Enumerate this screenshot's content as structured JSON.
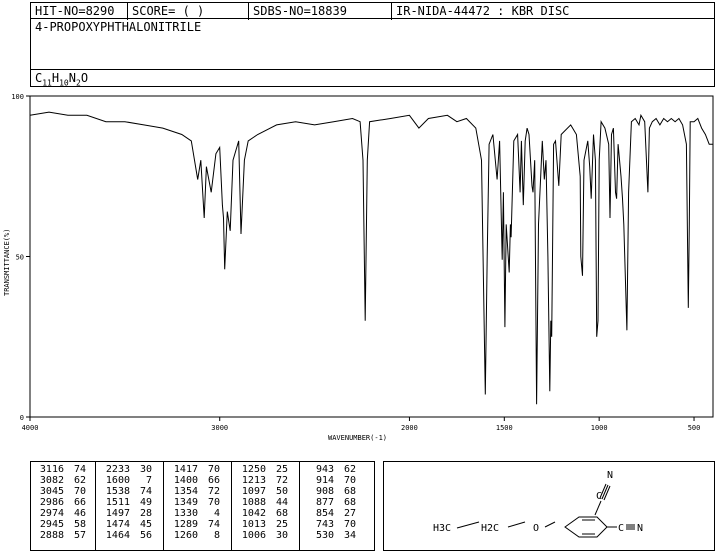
{
  "header": {
    "hit_no": "HIT-NO=8290",
    "score": "SCORE=  (    )",
    "sdbs_no": "SDBS-NO=18839",
    "ir_nida": "IR-NIDA-44472 : KBR DISC"
  },
  "compound": {
    "name": "4-PROPOXYPHTHALONITRILE",
    "formula": "C11H10N2O"
  },
  "chart_data": {
    "type": "line",
    "xlabel": "WAVENUMBER(-1)",
    "ylabel": "TRANSMITTANCE(%)",
    "xlim": [
      4000,
      400
    ],
    "ylim": [
      0,
      100
    ],
    "x_ticks": [
      4000,
      3000,
      2000,
      1500,
      1000,
      500
    ],
    "y_ticks": [
      0,
      50,
      100
    ],
    "series": [
      {
        "points": [
          [
            4000,
            94
          ],
          [
            3900,
            95
          ],
          [
            3800,
            94
          ],
          [
            3700,
            94
          ],
          [
            3600,
            92
          ],
          [
            3500,
            92
          ],
          [
            3400,
            91
          ],
          [
            3300,
            90
          ],
          [
            3200,
            88
          ],
          [
            3150,
            86
          ],
          [
            3116,
            74
          ],
          [
            3100,
            80
          ],
          [
            3082,
            62
          ],
          [
            3070,
            78
          ],
          [
            3045,
            70
          ],
          [
            3020,
            82
          ],
          [
            3000,
            84
          ],
          [
            2986,
            66
          ],
          [
            2980,
            62
          ],
          [
            2974,
            46
          ],
          [
            2960,
            64
          ],
          [
            2945,
            58
          ],
          [
            2930,
            80
          ],
          [
            2900,
            86
          ],
          [
            2888,
            57
          ],
          [
            2870,
            80
          ],
          [
            2850,
            86
          ],
          [
            2800,
            88
          ],
          [
            2700,
            91
          ],
          [
            2600,
            92
          ],
          [
            2500,
            91
          ],
          [
            2400,
            92
          ],
          [
            2300,
            93
          ],
          [
            2260,
            92
          ],
          [
            2245,
            80
          ],
          [
            2233,
            30
          ],
          [
            2222,
            80
          ],
          [
            2210,
            92
          ],
          [
            2100,
            93
          ],
          [
            2000,
            94
          ],
          [
            1950,
            90
          ],
          [
            1900,
            93
          ],
          [
            1800,
            94
          ],
          [
            1750,
            92
          ],
          [
            1700,
            93
          ],
          [
            1650,
            90
          ],
          [
            1620,
            80
          ],
          [
            1600,
            7
          ],
          [
            1590,
            50
          ],
          [
            1580,
            85
          ],
          [
            1560,
            88
          ],
          [
            1538,
            74
          ],
          [
            1525,
            86
          ],
          [
            1511,
            49
          ],
          [
            1505,
            70
          ],
          [
            1497,
            28
          ],
          [
            1490,
            60
          ],
          [
            1474,
            45
          ],
          [
            1468,
            60
          ],
          [
            1464,
            56
          ],
          [
            1450,
            86
          ],
          [
            1430,
            88
          ],
          [
            1417,
            70
          ],
          [
            1410,
            86
          ],
          [
            1400,
            66
          ],
          [
            1390,
            86
          ],
          [
            1380,
            90
          ],
          [
            1370,
            88
          ],
          [
            1354,
            72
          ],
          [
            1349,
            70
          ],
          [
            1340,
            80
          ],
          [
            1330,
            4
          ],
          [
            1320,
            60
          ],
          [
            1300,
            86
          ],
          [
            1289,
            74
          ],
          [
            1280,
            80
          ],
          [
            1270,
            50
          ],
          [
            1260,
            8
          ],
          [
            1255,
            30
          ],
          [
            1250,
            25
          ],
          [
            1240,
            85
          ],
          [
            1230,
            86
          ],
          [
            1213,
            72
          ],
          [
            1200,
            88
          ],
          [
            1150,
            91
          ],
          [
            1120,
            88
          ],
          [
            1100,
            75
          ],
          [
            1097,
            50
          ],
          [
            1088,
            44
          ],
          [
            1080,
            80
          ],
          [
            1060,
            86
          ],
          [
            1050,
            78
          ],
          [
            1042,
            68
          ],
          [
            1030,
            88
          ],
          [
            1020,
            80
          ],
          [
            1013,
            25
          ],
          [
            1006,
            30
          ],
          [
            1000,
            80
          ],
          [
            990,
            92
          ],
          [
            970,
            90
          ],
          [
            950,
            85
          ],
          [
            943,
            62
          ],
          [
            935,
            88
          ],
          [
            925,
            90
          ],
          [
            914,
            70
          ],
          [
            908,
            68
          ],
          [
            900,
            85
          ],
          [
            885,
            75
          ],
          [
            877,
            68
          ],
          [
            870,
            60
          ],
          [
            854,
            27
          ],
          [
            845,
            70
          ],
          [
            830,
            92
          ],
          [
            810,
            93
          ],
          [
            790,
            91
          ],
          [
            780,
            94
          ],
          [
            760,
            92
          ],
          [
            743,
            70
          ],
          [
            735,
            90
          ],
          [
            720,
            92
          ],
          [
            700,
            93
          ],
          [
            680,
            91
          ],
          [
            660,
            93
          ],
          [
            640,
            92
          ],
          [
            620,
            93
          ],
          [
            600,
            92
          ],
          [
            580,
            93
          ],
          [
            560,
            91
          ],
          [
            540,
            85
          ],
          [
            530,
            34
          ],
          [
            525,
            60
          ],
          [
            520,
            92
          ],
          [
            500,
            92
          ],
          [
            480,
            93
          ],
          [
            460,
            90
          ],
          [
            440,
            88
          ],
          [
            420,
            85
          ],
          [
            400,
            85
          ]
        ]
      }
    ]
  },
  "peak_table": [
    [
      [
        "3116",
        "74"
      ],
      [
        "3082",
        "62"
      ],
      [
        "3045",
        "70"
      ],
      [
        "2986",
        "66"
      ],
      [
        "2974",
        "46"
      ],
      [
        "2945",
        "58"
      ],
      [
        "2888",
        "57"
      ]
    ],
    [
      [
        "2233",
        "30"
      ],
      [
        "1600",
        "7"
      ],
      [
        "1538",
        "74"
      ],
      [
        "1511",
        "49"
      ],
      [
        "1497",
        "28"
      ],
      [
        "1474",
        "45"
      ],
      [
        "1464",
        "56"
      ]
    ],
    [
      [
        "1417",
        "70"
      ],
      [
        "1400",
        "66"
      ],
      [
        "1354",
        "72"
      ],
      [
        "1349",
        "70"
      ],
      [
        "1330",
        "4"
      ],
      [
        "1289",
        "74"
      ],
      [
        "1260",
        "8"
      ]
    ],
    [
      [
        "1250",
        "25"
      ],
      [
        "1213",
        "72"
      ],
      [
        "1097",
        "50"
      ],
      [
        "1088",
        "44"
      ],
      [
        "1042",
        "68"
      ],
      [
        "1013",
        "25"
      ],
      [
        "1006",
        "30"
      ]
    ],
    [
      [
        "943",
        "62"
      ],
      [
        "914",
        "70"
      ],
      [
        "908",
        "68"
      ],
      [
        "877",
        "68"
      ],
      [
        "854",
        "27"
      ],
      [
        "743",
        "70"
      ],
      [
        "530",
        "34"
      ]
    ]
  ],
  "structure": {
    "left_chain": "H3C",
    "ch2_1": "CH2",
    "ch2_2": "H2C",
    "oxygen": "O",
    "nitrile_top": "N",
    "nitrile_right": "N"
  }
}
